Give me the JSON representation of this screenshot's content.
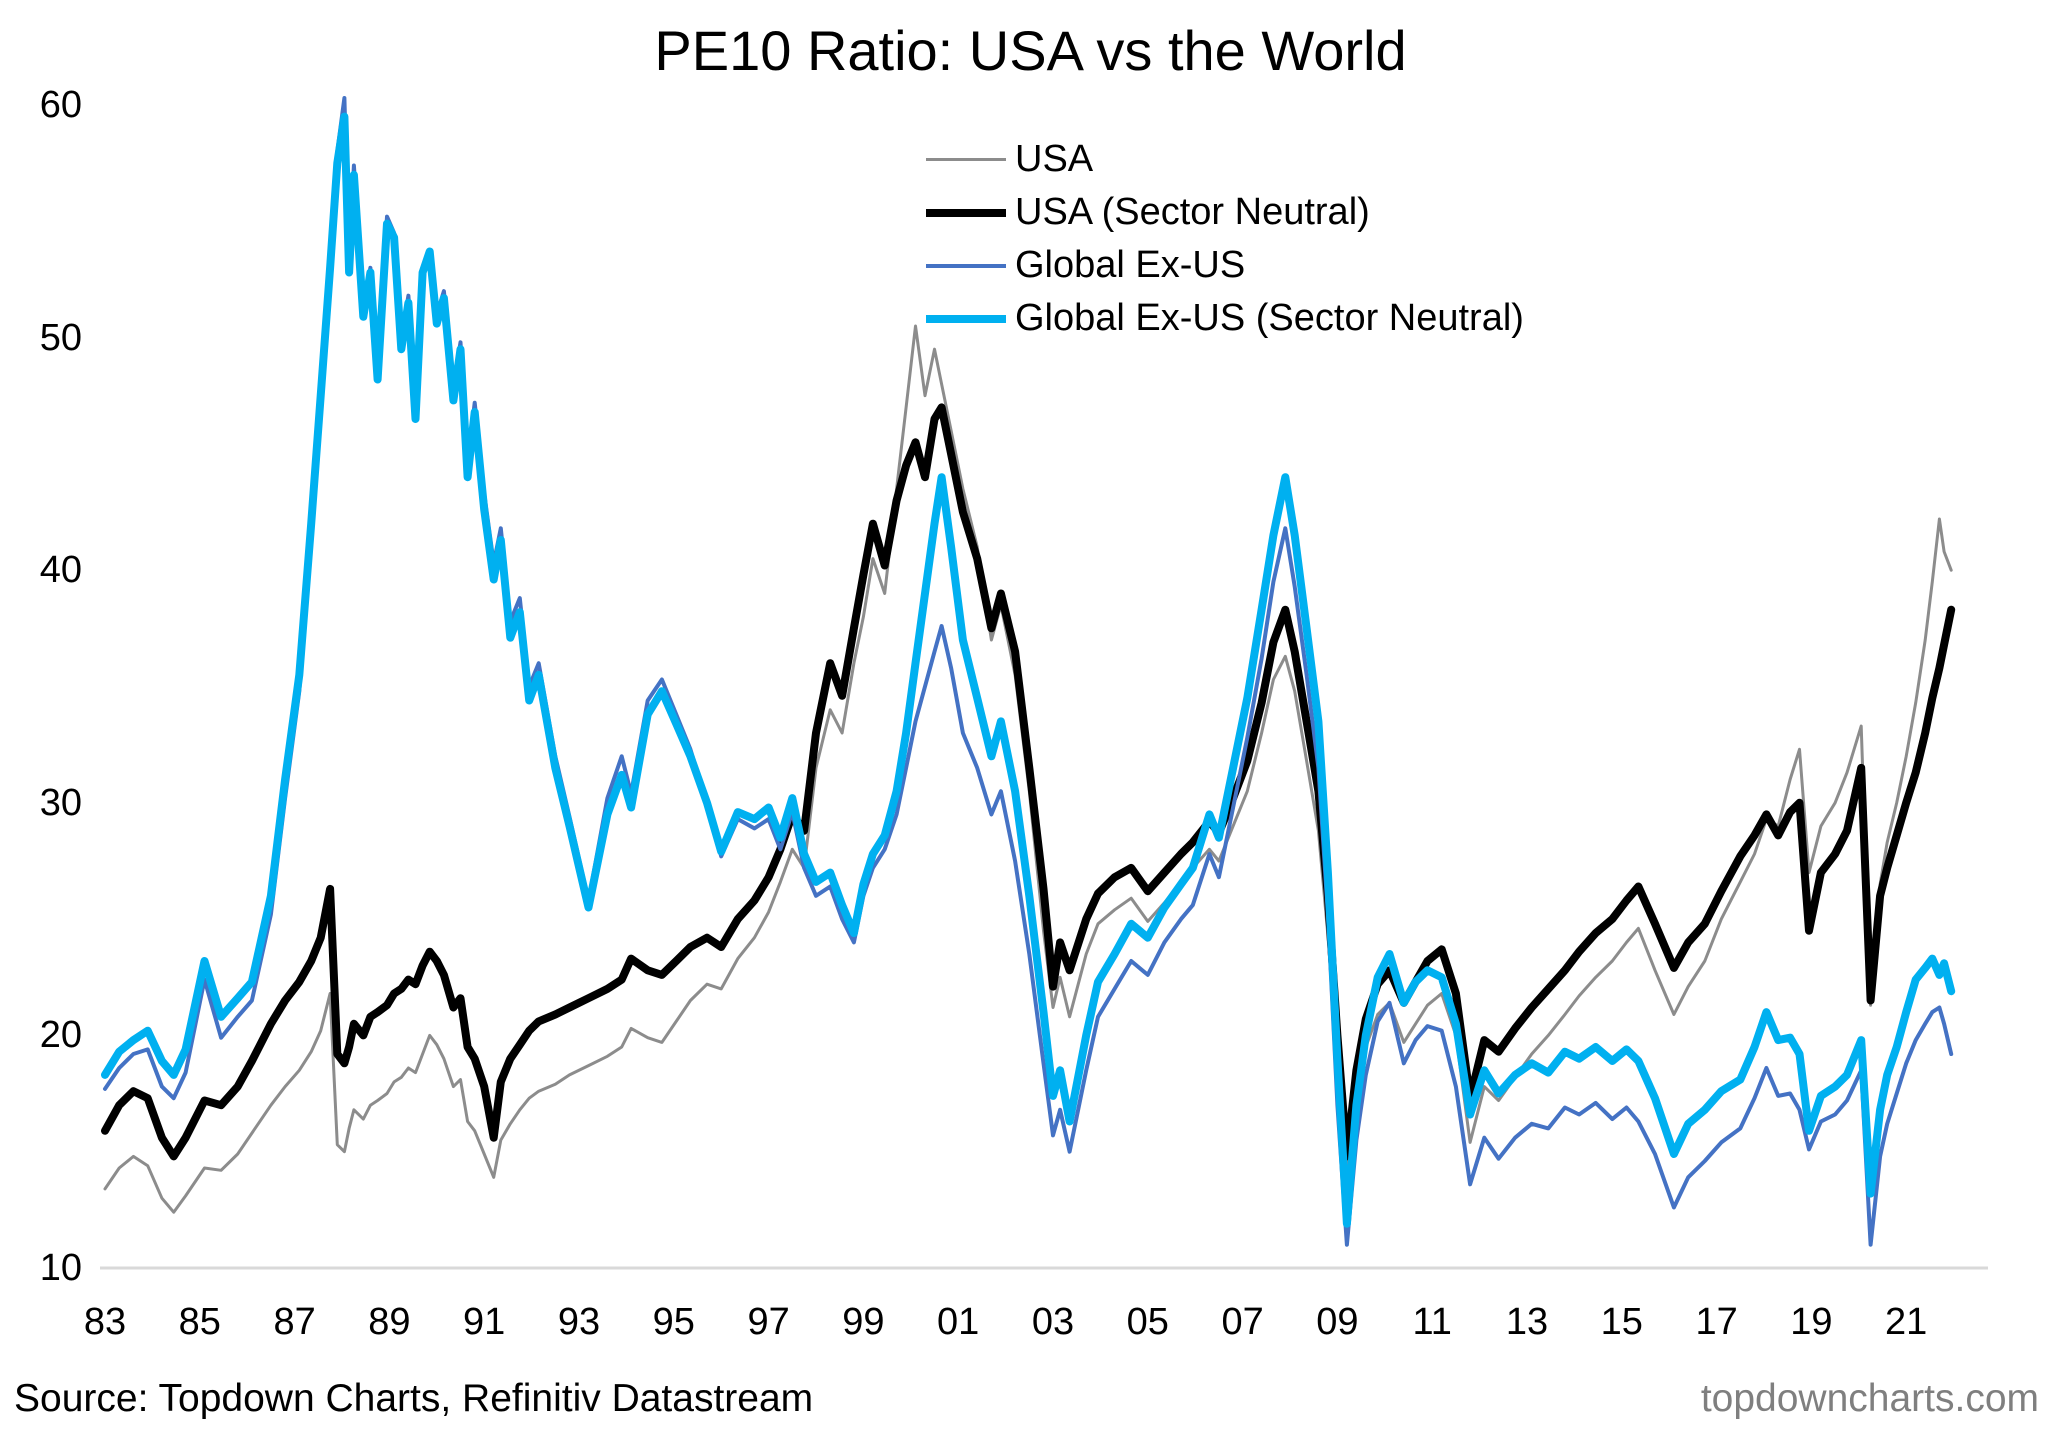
{
  "header": {
    "title": "PE10 Ratio: USA vs the World"
  },
  "footer": {
    "source_text": "Source: Topdown Charts, Refinitiv Datastream",
    "watermark": "topdowncharts.com"
  },
  "legend": {
    "position": "upper-right",
    "items": [
      {
        "label": "USA",
        "color": "#8c8c8c",
        "line_width": 3
      },
      {
        "label": "USA (Sector Neutral)",
        "color": "#000000",
        "line_width": 8
      },
      {
        "label": "Global Ex-US",
        "color": "#4472c4",
        "line_width": 4
      },
      {
        "label": "Global Ex-US (Sector Neutral)",
        "color": "#00b0f0",
        "line_width": 8
      }
    ]
  },
  "axes": {
    "y_ticks": [
      60,
      50,
      40,
      30,
      20,
      10
    ],
    "x_ticks": [
      "83",
      "85",
      "87",
      "89",
      "91",
      "93",
      "95",
      "97",
      "99",
      "01",
      "03",
      "05",
      "07",
      "09",
      "11",
      "13",
      "15",
      "17",
      "19",
      "21"
    ],
    "x_tick_start_year": 1983,
    "x_tick_step_years": 2,
    "baseline_color": "#d9d9d9"
  },
  "chart_data": {
    "type": "line",
    "title": "PE10 Ratio: USA vs the World",
    "xlabel": "",
    "ylabel": "",
    "ylim": [
      10,
      60
    ],
    "xlim": [
      1983,
      2022.3
    ],
    "grid": false,
    "legend_position": "upper-right",
    "x": [
      1983.0,
      1983.3,
      1983.6,
      1983.9,
      1984.2,
      1984.45,
      1984.7,
      1985.1,
      1985.45,
      1985.8,
      1986.1,
      1986.5,
      1986.8,
      1987.1,
      1987.35,
      1987.55,
      1987.75,
      1987.9,
      1988.05,
      1988.15,
      1988.25,
      1988.45,
      1988.6,
      1988.75,
      1988.95,
      1989.1,
      1989.25,
      1989.4,
      1989.55,
      1989.7,
      1989.85,
      1990.0,
      1990.15,
      1990.35,
      1990.5,
      1990.65,
      1990.8,
      1991.0,
      1991.2,
      1991.35,
      1991.55,
      1991.75,
      1991.95,
      1992.15,
      1992.5,
      1992.8,
      1993.2,
      1993.6,
      1993.9,
      1994.1,
      1994.45,
      1994.75,
      1995.05,
      1995.35,
      1995.7,
      1996.0,
      1996.35,
      1996.7,
      1997.0,
      1997.25,
      1997.5,
      1997.75,
      1998.0,
      1998.3,
      1998.55,
      1998.8,
      1999.0,
      1999.2,
      1999.45,
      1999.7,
      1999.9,
      2000.1,
      2000.3,
      2000.5,
      2000.65,
      2000.85,
      2001.1,
      2001.4,
      2001.7,
      2001.9,
      2002.2,
      2002.5,
      2002.8,
      2003.0,
      2003.15,
      2003.35,
      2003.7,
      2003.95,
      2004.3,
      2004.65,
      2005.0,
      2005.35,
      2005.7,
      2005.95,
      2006.3,
      2006.5,
      2006.8,
      2007.1,
      2007.4,
      2007.65,
      2007.9,
      2008.1,
      2008.35,
      2008.6,
      2008.8,
      2009.0,
      2009.2,
      2009.4,
      2009.6,
      2009.85,
      2010.1,
      2010.4,
      2010.65,
      2010.9,
      2011.2,
      2011.5,
      2011.8,
      2012.1,
      2012.4,
      2012.75,
      2013.1,
      2013.45,
      2013.8,
      2014.1,
      2014.45,
      2014.8,
      2015.1,
      2015.35,
      2015.7,
      2016.1,
      2016.4,
      2016.75,
      2017.1,
      2017.5,
      2017.8,
      2018.05,
      2018.3,
      2018.55,
      2018.75,
      2018.95,
      2019.2,
      2019.5,
      2019.75,
      2020.05,
      2020.25,
      2020.45,
      2020.6,
      2020.8,
      2021.0,
      2021.2,
      2021.4,
      2021.55,
      2021.7,
      2021.8,
      2021.95
    ],
    "series": [
      {
        "name": "USA",
        "color": "#8c8c8c",
        "line_width": 3,
        "values": [
          13.4,
          14.3,
          14.8,
          14.4,
          13.0,
          12.4,
          13.1,
          14.3,
          14.2,
          14.9,
          15.8,
          17.0,
          17.8,
          18.5,
          19.3,
          20.2,
          21.8,
          15.3,
          15.0,
          16.0,
          16.8,
          16.4,
          17.0,
          17.2,
          17.5,
          18.0,
          18.2,
          18.6,
          18.4,
          19.2,
          20.0,
          19.6,
          19.0,
          17.8,
          18.1,
          16.3,
          15.9,
          14.9,
          13.9,
          15.5,
          16.2,
          16.8,
          17.3,
          17.6,
          17.9,
          18.3,
          18.7,
          19.1,
          19.5,
          20.3,
          19.9,
          19.7,
          20.6,
          21.5,
          22.2,
          22.0,
          23.3,
          24.2,
          25.3,
          26.6,
          28.0,
          27.2,
          31.5,
          34.0,
          33.0,
          36.0,
          38.0,
          40.5,
          39.0,
          43.5,
          47.0,
          50.5,
          47.5,
          49.5,
          48.0,
          46.0,
          43.5,
          41.0,
          37.0,
          38.5,
          35.5,
          30.5,
          24.5,
          21.2,
          22.5,
          20.8,
          23.5,
          24.8,
          25.4,
          25.9,
          24.9,
          25.7,
          26.6,
          27.2,
          28.0,
          27.5,
          29.0,
          30.5,
          33.0,
          35.3,
          36.3,
          34.8,
          31.8,
          28.8,
          24.3,
          18.8,
          14.2,
          17.4,
          19.5,
          20.9,
          21.4,
          19.7,
          20.5,
          21.3,
          21.8,
          20.0,
          15.4,
          17.8,
          17.2,
          18.2,
          19.2,
          20.0,
          20.9,
          21.7,
          22.5,
          23.2,
          24.0,
          24.6,
          22.8,
          20.9,
          22.1,
          23.2,
          25.0,
          26.6,
          27.8,
          29.3,
          29.0,
          31.0,
          32.3,
          27.0,
          29.0,
          30.0,
          31.3,
          33.3,
          21.3,
          26.5,
          28.3,
          30.0,
          32.0,
          34.3,
          37.0,
          39.5,
          42.2,
          40.8,
          40.0
        ]
      },
      {
        "name": "USA (Sector Neutral)",
        "color": "#000000",
        "line_width": 8,
        "values": [
          15.9,
          17.0,
          17.6,
          17.3,
          15.6,
          14.8,
          15.6,
          17.2,
          17.0,
          17.8,
          18.9,
          20.5,
          21.5,
          22.3,
          23.2,
          24.2,
          26.3,
          19.2,
          18.8,
          19.5,
          20.5,
          20.0,
          20.8,
          21.0,
          21.3,
          21.8,
          22.0,
          22.4,
          22.2,
          23.0,
          23.6,
          23.2,
          22.6,
          21.2,
          21.6,
          19.5,
          19.0,
          17.8,
          15.6,
          18.0,
          19.0,
          19.6,
          20.2,
          20.6,
          20.9,
          21.2,
          21.6,
          22.0,
          22.4,
          23.3,
          22.8,
          22.6,
          23.2,
          23.8,
          24.2,
          23.8,
          25.0,
          25.8,
          26.8,
          28.0,
          29.5,
          28.8,
          33.0,
          36.0,
          34.6,
          37.5,
          39.8,
          42.0,
          40.2,
          43.0,
          44.5,
          45.5,
          44.0,
          46.5,
          47.0,
          45.0,
          42.5,
          40.5,
          37.5,
          39.0,
          36.5,
          31.5,
          26.3,
          22.1,
          24.0,
          22.8,
          25.0,
          26.1,
          26.8,
          27.2,
          26.2,
          27.0,
          27.8,
          28.3,
          29.2,
          28.7,
          30.2,
          31.8,
          34.3,
          36.9,
          38.3,
          36.5,
          33.5,
          30.5,
          26.0,
          20.0,
          14.8,
          18.5,
          20.7,
          22.2,
          22.8,
          21.4,
          22.3,
          23.2,
          23.7,
          21.8,
          17.3,
          19.8,
          19.3,
          20.3,
          21.2,
          22.0,
          22.8,
          23.6,
          24.4,
          25.0,
          25.8,
          26.4,
          24.8,
          22.9,
          24.0,
          24.8,
          26.2,
          27.7,
          28.6,
          29.5,
          28.6,
          29.6,
          30.0,
          24.5,
          27.0,
          27.8,
          28.8,
          31.5,
          21.5,
          26.0,
          27.2,
          28.6,
          30.0,
          31.3,
          33.0,
          34.5,
          35.8,
          36.8,
          38.3
        ]
      },
      {
        "name": "Global Ex-US",
        "color": "#4472c4",
        "line_width": 4,
        "values": [
          17.7,
          18.6,
          19.2,
          19.4,
          17.8,
          17.3,
          18.4,
          22.4,
          19.9,
          20.8,
          21.5,
          25.2,
          30.2,
          34.8,
          41.3,
          47.0,
          52.7,
          58.0,
          60.3,
          53.2,
          57.4,
          51.4,
          53.0,
          48.8,
          55.2,
          54.5,
          50.0,
          51.8,
          47.5,
          53.0,
          53.5,
          51.0,
          52.0,
          47.9,
          49.8,
          44.6,
          47.2,
          43.3,
          40.3,
          41.8,
          37.8,
          38.8,
          35.0,
          36.0,
          32.0,
          29.4,
          25.8,
          30.2,
          32.0,
          30.4,
          34.4,
          35.3,
          33.8,
          32.3,
          30.0,
          27.7,
          29.3,
          28.9,
          29.3,
          28.0,
          29.6,
          27.2,
          26.0,
          26.4,
          25.0,
          24.0,
          26.0,
          27.2,
          28.0,
          29.5,
          31.5,
          33.5,
          35.0,
          36.5,
          37.6,
          35.8,
          33.0,
          31.5,
          29.5,
          30.5,
          27.5,
          23.5,
          18.8,
          15.7,
          16.8,
          15.0,
          18.5,
          20.8,
          22.0,
          23.2,
          22.6,
          24.0,
          25.0,
          25.6,
          27.8,
          26.8,
          29.8,
          32.8,
          36.2,
          39.5,
          41.8,
          39.3,
          35.5,
          31.5,
          25.2,
          17.0,
          11.0,
          15.5,
          18.3,
          20.6,
          21.4,
          18.8,
          19.8,
          20.4,
          20.2,
          17.8,
          13.6,
          15.6,
          14.7,
          15.6,
          16.2,
          16.0,
          16.9,
          16.6,
          17.1,
          16.4,
          16.9,
          16.3,
          14.9,
          12.6,
          13.9,
          14.6,
          15.4,
          16.0,
          17.3,
          18.6,
          17.4,
          17.5,
          16.8,
          15.1,
          16.3,
          16.6,
          17.2,
          18.5,
          11.0,
          14.8,
          16.2,
          17.5,
          18.8,
          19.8,
          20.5,
          21.0,
          21.2,
          20.5,
          19.2
        ]
      },
      {
        "name": "Global Ex-US (Sector Neutral)",
        "color": "#00b0f0",
        "line_width": 8,
        "values": [
          18.3,
          19.3,
          19.8,
          20.2,
          18.9,
          18.3,
          19.4,
          23.2,
          20.8,
          21.6,
          22.3,
          26.0,
          31.0,
          35.5,
          42.0,
          47.5,
          53.0,
          57.5,
          59.5,
          52.8,
          57.0,
          50.9,
          52.8,
          48.2,
          54.9,
          54.3,
          49.5,
          51.5,
          46.5,
          52.8,
          53.7,
          50.6,
          51.7,
          47.3,
          49.5,
          44.0,
          46.8,
          42.6,
          39.6,
          41.3,
          37.1,
          38.2,
          34.4,
          35.5,
          31.5,
          29.0,
          25.5,
          29.5,
          31.2,
          29.8,
          33.8,
          34.8,
          33.4,
          32.0,
          30.0,
          27.9,
          29.6,
          29.3,
          29.8,
          28.5,
          30.2,
          27.8,
          26.6,
          27.0,
          25.6,
          24.4,
          26.5,
          27.8,
          28.6,
          30.5,
          33.0,
          36.0,
          39.0,
          42.0,
          44.0,
          41.0,
          37.0,
          34.5,
          32.0,
          33.5,
          30.5,
          26.0,
          21.0,
          17.4,
          18.5,
          16.3,
          20.0,
          22.3,
          23.5,
          24.8,
          24.2,
          25.5,
          26.5,
          27.2,
          29.5,
          28.5,
          31.5,
          34.5,
          38.3,
          41.5,
          44.0,
          41.5,
          37.5,
          33.5,
          27.0,
          19.0,
          11.9,
          17.0,
          20.0,
          22.5,
          23.5,
          21.4,
          22.3,
          22.8,
          22.5,
          20.5,
          16.6,
          18.5,
          17.5,
          18.3,
          18.8,
          18.4,
          19.3,
          19.0,
          19.5,
          18.9,
          19.4,
          18.9,
          17.3,
          14.9,
          16.2,
          16.8,
          17.6,
          18.1,
          19.5,
          21.0,
          19.8,
          19.9,
          19.2,
          15.9,
          17.4,
          17.8,
          18.3,
          19.8,
          13.2,
          16.8,
          18.3,
          19.5,
          21.0,
          22.4,
          22.9,
          23.3,
          22.6,
          23.1,
          21.9
        ]
      }
    ]
  }
}
